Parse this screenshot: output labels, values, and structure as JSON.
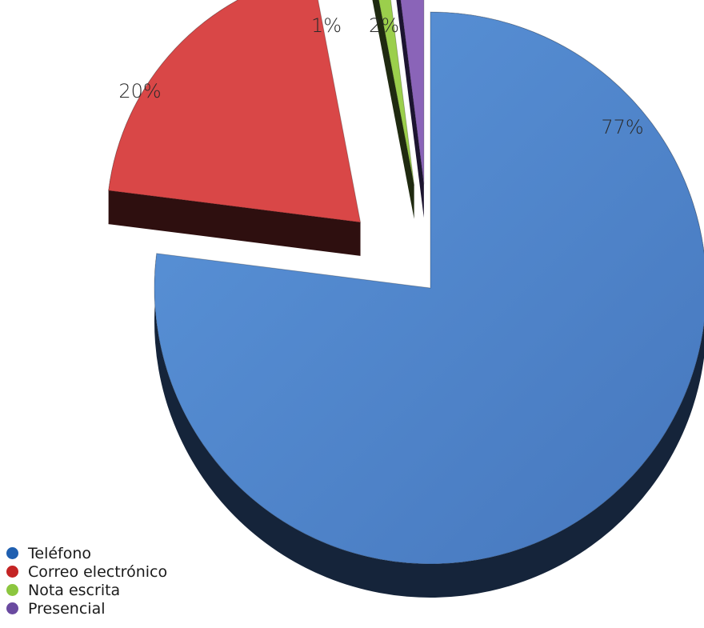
{
  "chart_data": {
    "type": "pie",
    "style": "3d-exploded",
    "title": "",
    "slices": [
      {
        "label": "Teléfono",
        "value": 77,
        "value_label": "77%",
        "color": "#4f87cc",
        "side_color": "#15243a"
      },
      {
        "label": "Correo electrónico",
        "value": 20,
        "value_label": "20%",
        "color": "#d94747",
        "side_color": "#2e0f0f"
      },
      {
        "label": "Nota escrita",
        "value": 1,
        "value_label": "1%",
        "color": "#9bcf4c",
        "side_color": "#1f2a10"
      },
      {
        "label": "Presencial",
        "value": 2,
        "value_label": "2%",
        "color": "#8a64b8",
        "side_color": "#1c1430"
      }
    ],
    "legend_position": "bottom-left"
  }
}
